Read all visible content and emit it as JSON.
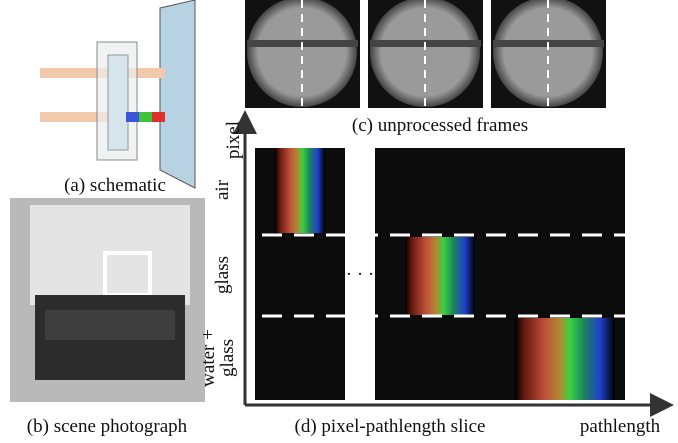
{
  "captions": {
    "a": "(a) schematic",
    "b": "(b) scene photograph",
    "c": "(c) unprocessed frames",
    "d": "(d) pixel-pathlength slice"
  },
  "axes": {
    "x": "pathlength",
    "y": "pixel"
  },
  "rows": {
    "air": "air",
    "glass": "glass",
    "water_1": "water +",
    "water_2": "glass"
  },
  "ellipsis": "· · ·"
}
